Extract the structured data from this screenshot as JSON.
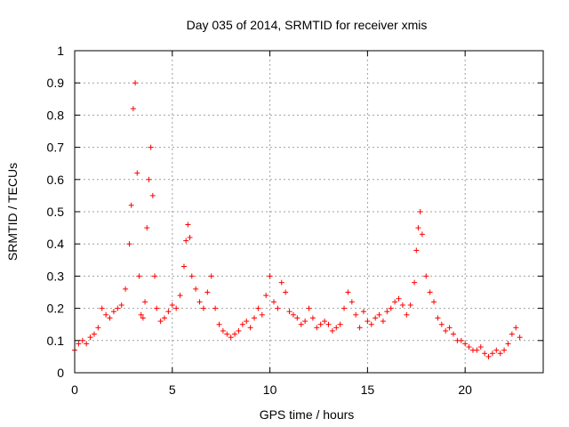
{
  "chart_data": {
    "type": "scatter",
    "title": "Day 035 of 2014, SRMTID for receiver xmis",
    "xlabel": "GPS time / hours",
    "ylabel": "SRMTID / TECUs",
    "xlim": [
      0,
      24
    ],
    "ylim": [
      0,
      1
    ],
    "x_ticks": [
      0,
      5,
      10,
      15,
      20
    ],
    "x_tick_labels": [
      "0",
      "5",
      "10",
      "15",
      "20"
    ],
    "y_ticks": [
      0,
      0.1,
      0.2,
      0.3,
      0.4,
      0.5,
      0.6,
      0.7,
      0.8,
      0.9,
      1
    ],
    "y_tick_labels": [
      "0",
      "0.1",
      "0.2",
      "0.3",
      "0.4",
      "0.5",
      "0.6",
      "0.7",
      "0.8",
      "0.9",
      "1"
    ],
    "grid": true,
    "marker": "+",
    "color": "#ff0000",
    "series": [
      {
        "name": "SRMTID",
        "x": [
          0.0,
          0.2,
          0.4,
          0.6,
          0.8,
          1.0,
          1.2,
          1.4,
          1.6,
          1.8,
          2.0,
          2.2,
          2.4,
          2.6,
          2.8,
          2.9,
          3.0,
          3.1,
          3.2,
          3.3,
          3.4,
          3.5,
          3.6,
          3.7,
          3.8,
          3.9,
          4.0,
          4.1,
          4.2,
          4.4,
          4.6,
          4.8,
          5.0,
          5.2,
          5.4,
          5.6,
          5.7,
          5.8,
          5.9,
          6.0,
          6.2,
          6.4,
          6.6,
          6.8,
          7.0,
          7.2,
          7.4,
          7.6,
          7.8,
          8.0,
          8.2,
          8.4,
          8.6,
          8.8,
          9.0,
          9.2,
          9.4,
          9.6,
          9.8,
          10.0,
          10.2,
          10.4,
          10.6,
          10.8,
          11.0,
          11.2,
          11.4,
          11.6,
          11.8,
          12.0,
          12.2,
          12.4,
          12.6,
          12.8,
          13.0,
          13.2,
          13.4,
          13.6,
          13.8,
          14.0,
          14.2,
          14.4,
          14.6,
          14.8,
          15.0,
          15.2,
          15.4,
          15.6,
          15.8,
          16.0,
          16.2,
          16.4,
          16.6,
          16.8,
          17.0,
          17.2,
          17.4,
          17.5,
          17.6,
          17.7,
          17.8,
          18.0,
          18.2,
          18.4,
          18.6,
          18.8,
          19.0,
          19.2,
          19.4,
          19.6,
          19.8,
          20.0,
          20.2,
          20.4,
          20.6,
          20.8,
          21.0,
          21.2,
          21.4,
          21.6,
          21.8,
          22.0,
          22.2,
          22.4,
          22.6,
          22.8
        ],
        "y": [
          0.07,
          0.09,
          0.1,
          0.09,
          0.11,
          0.12,
          0.14,
          0.2,
          0.18,
          0.17,
          0.19,
          0.2,
          0.21,
          0.26,
          0.4,
          0.52,
          0.82,
          0.9,
          0.62,
          0.3,
          0.18,
          0.17,
          0.22,
          0.45,
          0.6,
          0.7,
          0.55,
          0.3,
          0.2,
          0.16,
          0.17,
          0.19,
          0.21,
          0.2,
          0.24,
          0.33,
          0.41,
          0.46,
          0.42,
          0.3,
          0.26,
          0.22,
          0.2,
          0.25,
          0.3,
          0.2,
          0.15,
          0.13,
          0.12,
          0.11,
          0.12,
          0.13,
          0.15,
          0.16,
          0.14,
          0.17,
          0.2,
          0.18,
          0.24,
          0.3,
          0.22,
          0.2,
          0.28,
          0.25,
          0.19,
          0.18,
          0.17,
          0.15,
          0.16,
          0.2,
          0.17,
          0.14,
          0.15,
          0.16,
          0.15,
          0.13,
          0.14,
          0.15,
          0.2,
          0.25,
          0.22,
          0.18,
          0.14,
          0.19,
          0.16,
          0.15,
          0.17,
          0.18,
          0.16,
          0.19,
          0.2,
          0.22,
          0.23,
          0.21,
          0.18,
          0.21,
          0.28,
          0.38,
          0.45,
          0.5,
          0.43,
          0.3,
          0.25,
          0.22,
          0.17,
          0.15,
          0.13,
          0.14,
          0.12,
          0.1,
          0.1,
          0.09,
          0.08,
          0.07,
          0.07,
          0.08,
          0.06,
          0.05,
          0.06,
          0.07,
          0.06,
          0.07,
          0.09,
          0.12,
          0.14,
          0.11
        ]
      }
    ]
  }
}
